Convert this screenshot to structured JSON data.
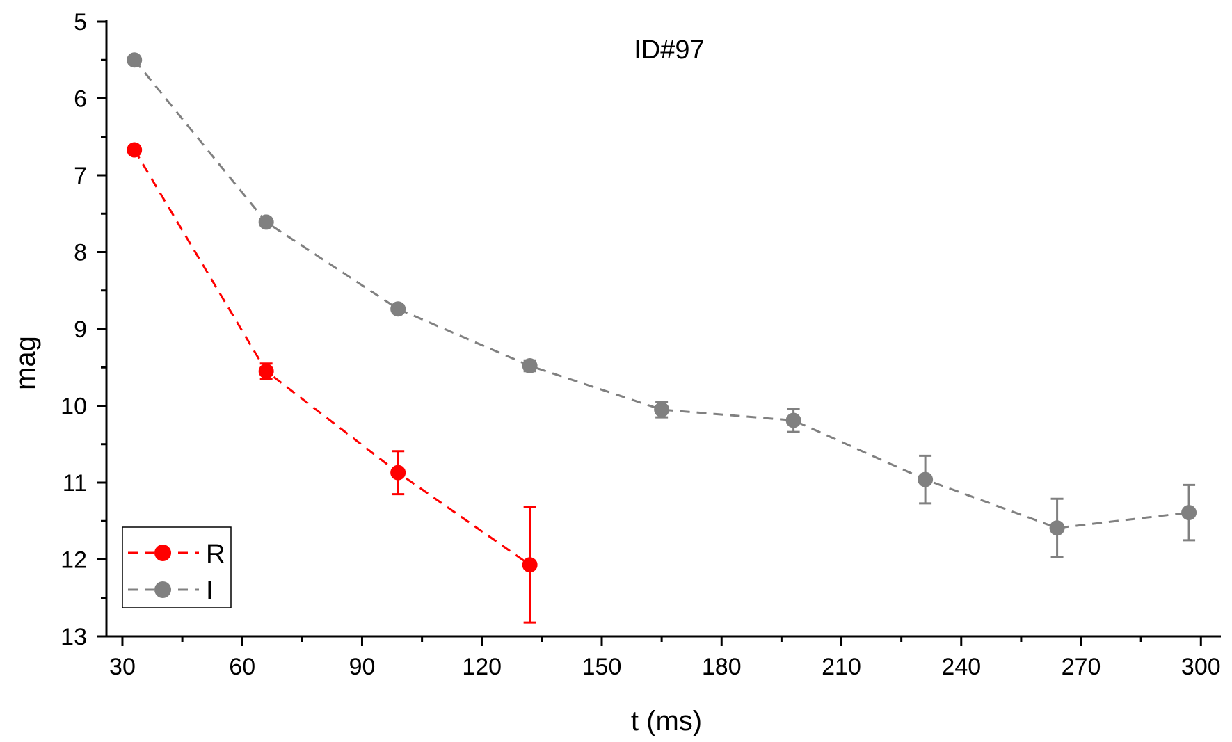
{
  "chart_data": {
    "type": "scatter",
    "title": "ID#97",
    "xlabel": "t (ms)",
    "ylabel": "mag",
    "xlim": [
      26,
      305
    ],
    "ylim": [
      5,
      13
    ],
    "y_inverted": true,
    "x_ticks": [
      30,
      60,
      90,
      120,
      150,
      180,
      210,
      240,
      270,
      300
    ],
    "x_minor_ticks": [
      45,
      75,
      105,
      135,
      165,
      195,
      225,
      255,
      285
    ],
    "y_ticks": [
      5,
      6,
      7,
      8,
      9,
      10,
      11,
      12,
      13
    ],
    "y_minor_ticks": [
      5.5,
      6.5,
      7.5,
      8.5,
      9.5,
      10.5,
      11.5,
      12.5
    ],
    "x_tick_labels": [
      "30",
      "60",
      "90",
      "120",
      "150",
      "180",
      "210",
      "240",
      "270",
      "300"
    ],
    "y_tick_labels": [
      "5",
      "6",
      "7",
      "8",
      "9",
      "10",
      "11",
      "12",
      "13"
    ],
    "legend_position": "bottom-left",
    "series": [
      {
        "name": "R",
        "color": "#ff0000",
        "x": [
          33,
          66,
          99,
          132
        ],
        "y": [
          6.67,
          9.55,
          10.87,
          12.07
        ],
        "yerr": [
          0.05,
          0.1,
          0.28,
          0.75
        ]
      },
      {
        "name": "I",
        "color": "#808080",
        "x": [
          33,
          66,
          99,
          132,
          165,
          198,
          231,
          264,
          297
        ],
        "y": [
          5.5,
          7.61,
          8.74,
          9.48,
          10.05,
          10.19,
          10.96,
          11.59,
          11.39
        ],
        "yerr": [
          0.02,
          0.03,
          0.05,
          0.07,
          0.1,
          0.15,
          0.31,
          0.38,
          0.36
        ]
      }
    ]
  }
}
